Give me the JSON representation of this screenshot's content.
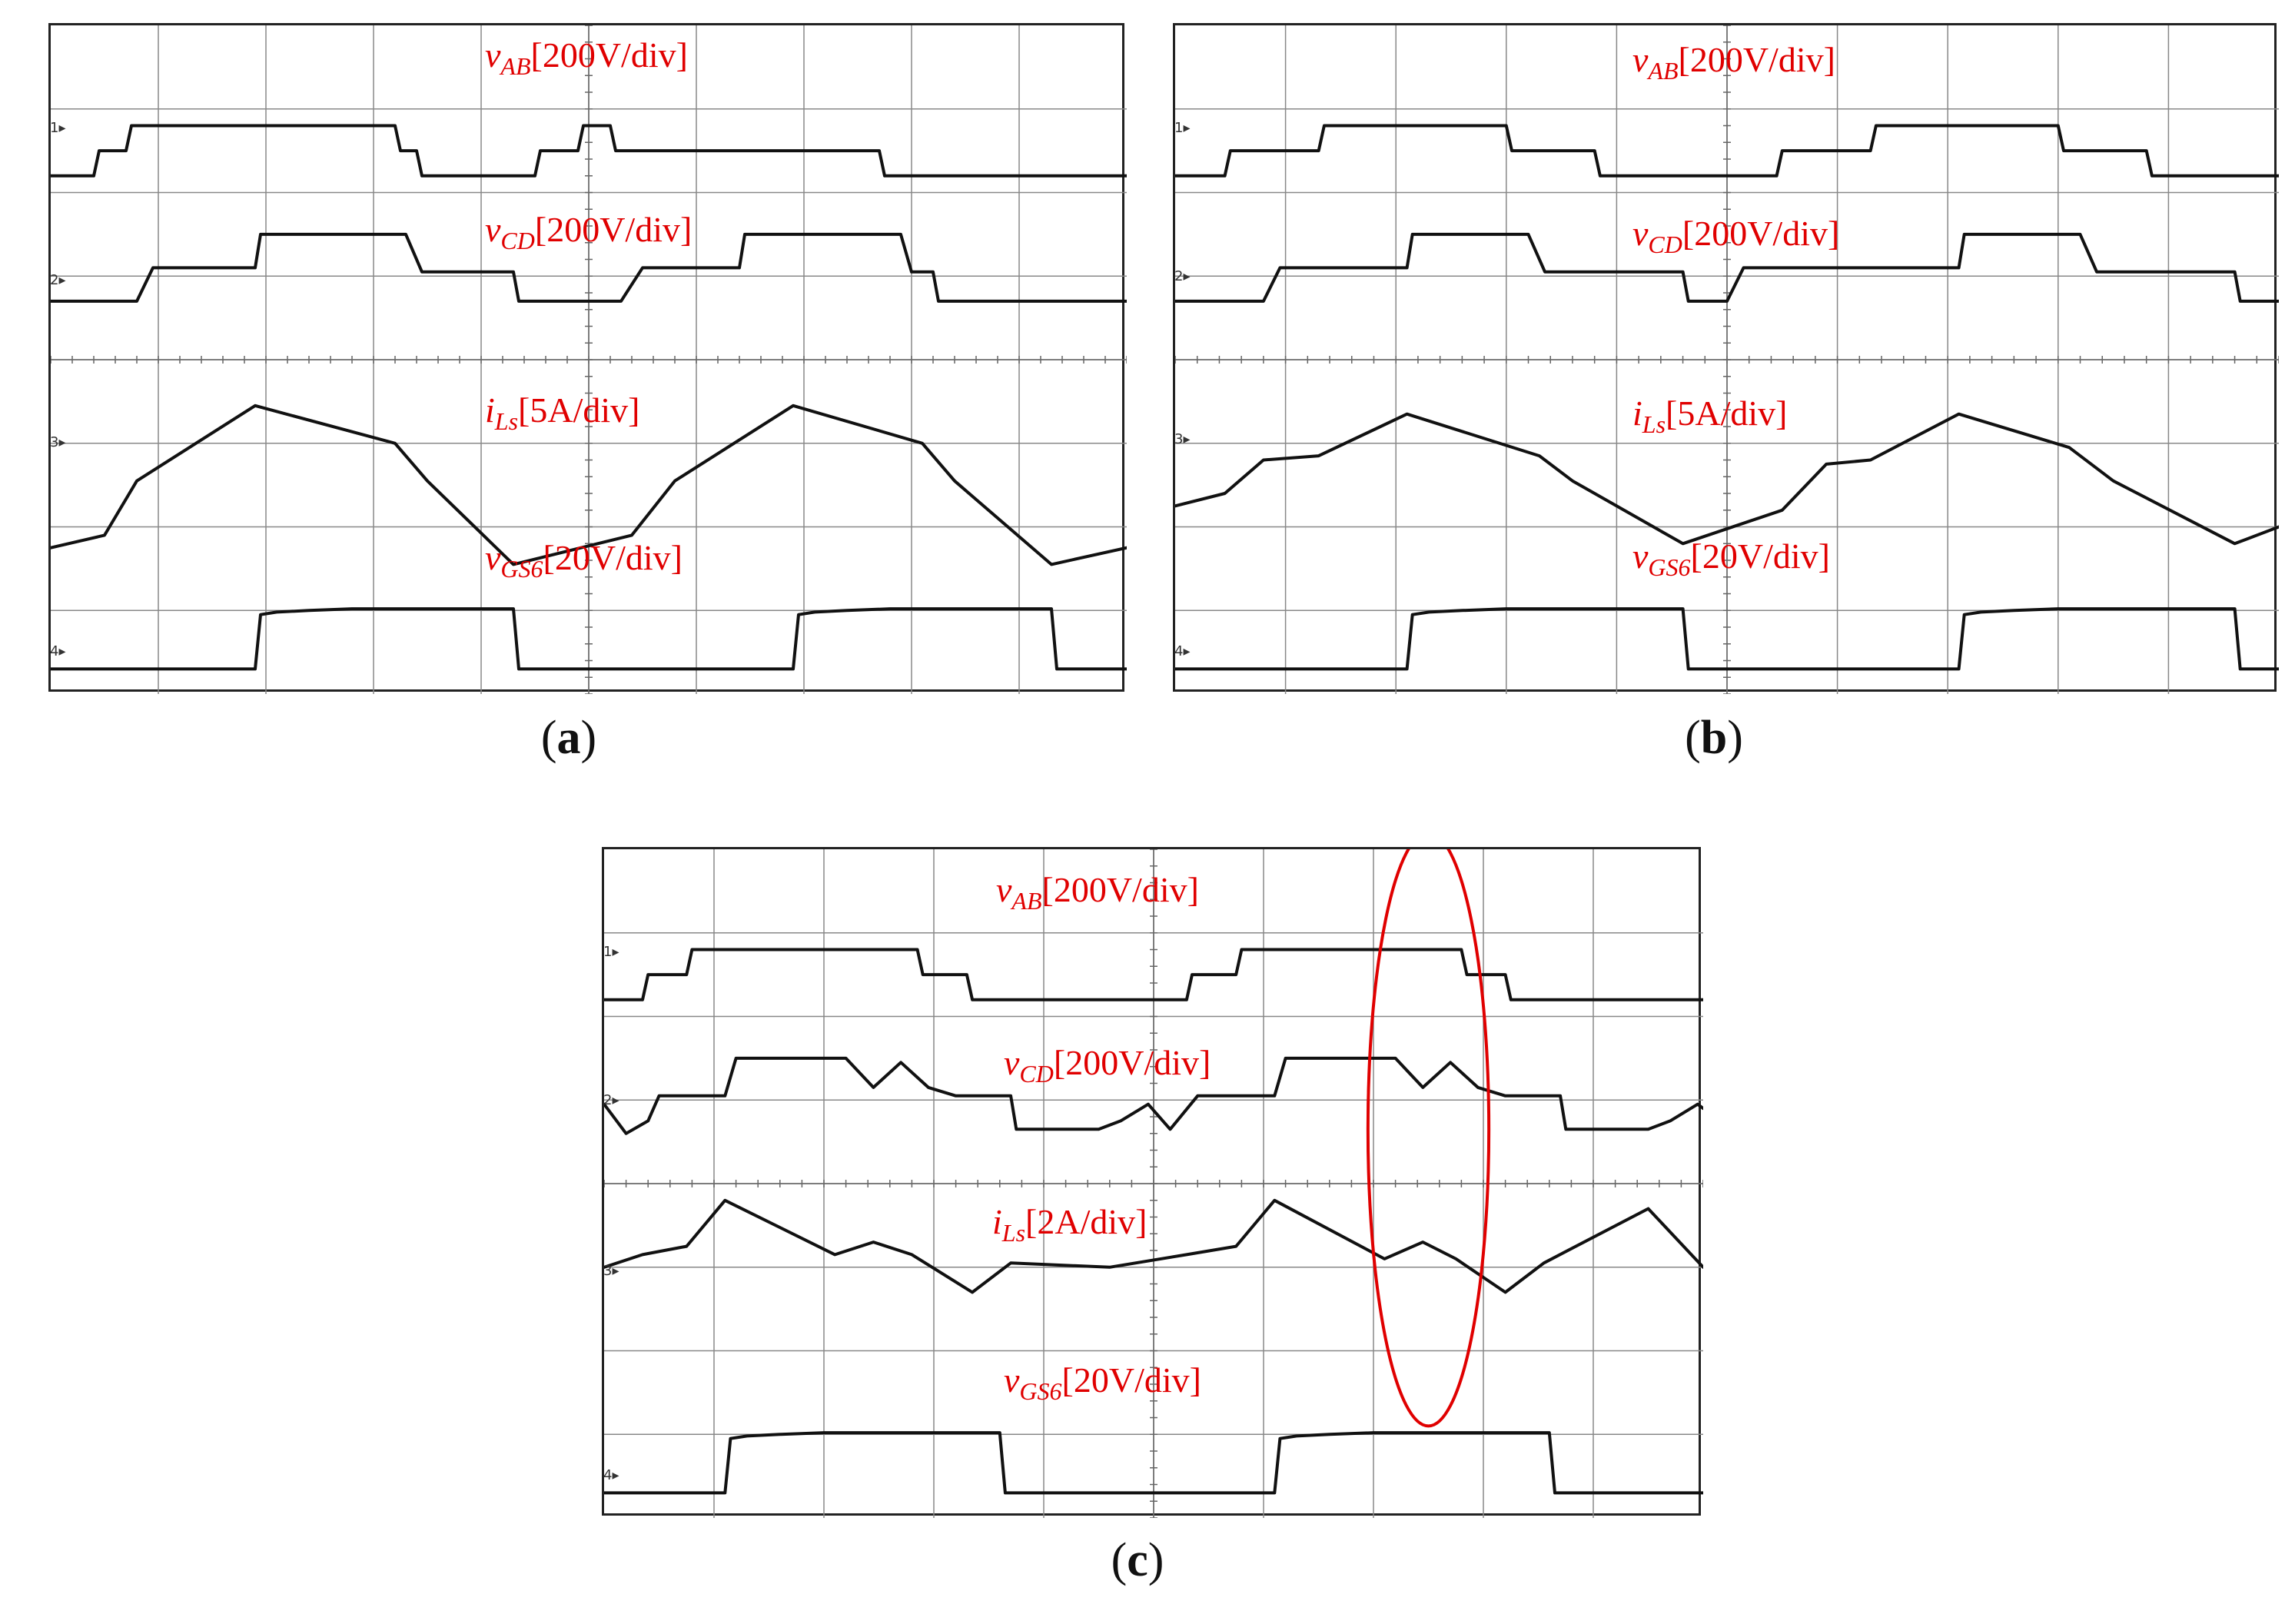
{
  "chart_data": [
    {
      "type": "line",
      "panel": "a",
      "caption_letter": "a",
      "title": "",
      "xlabel": "",
      "ylabel": "",
      "grid": true,
      "divisions": {
        "x": 10,
        "y": 8
      },
      "xlim": [
        0,
        10
      ],
      "ylim": [
        0,
        8
      ],
      "series": [
        {
          "name": "vAB",
          "sym": "v",
          "sub": "AB",
          "scale": "[200V/div]",
          "channel": "1",
          "x": [
            0,
            0.4,
            0.45,
            0.7,
            0.75,
            3.2,
            3.25,
            3.4,
            3.45,
            4.5,
            4.55,
            4.9,
            4.95,
            5.2,
            5.25,
            7.7,
            7.75,
            7.9,
            7.95,
            10
          ],
          "y": [
            6.2,
            6.2,
            6.5,
            6.5,
            6.8,
            6.8,
            6.5,
            6.5,
            6.2,
            6.2,
            6.5,
            6.5,
            6.8,
            6.8,
            6.5,
            6.5,
            6.2,
            6.2,
            6.2,
            6.2
          ]
        },
        {
          "name": "vCD",
          "sym": "v",
          "sub": "CD",
          "scale": "[200V/div]",
          "channel": "2",
          "x": [
            0,
            0.8,
            0.95,
            1.9,
            1.95,
            3.3,
            3.45,
            4.3,
            4.35,
            5.3,
            5.5,
            6.4,
            6.45,
            7.9,
            8.0,
            8.2,
            8.25,
            10
          ],
          "y": [
            4.7,
            4.7,
            5.1,
            5.1,
            5.5,
            5.5,
            5.05,
            5.05,
            4.7,
            4.7,
            5.1,
            5.1,
            5.5,
            5.5,
            5.05,
            5.05,
            4.7,
            4.7
          ]
        },
        {
          "name": "iLs",
          "sym": "i",
          "sub": "Ls",
          "scale": "[5A/div]",
          "channel": "3",
          "x": [
            0,
            0.5,
            0.8,
            1.9,
            3.2,
            3.5,
            4.3,
            5.4,
            5.8,
            6.9,
            8.1,
            8.4,
            9.3,
            10
          ],
          "y": [
            1.75,
            1.9,
            2.55,
            3.45,
            3.0,
            2.55,
            1.55,
            1.9,
            2.55,
            3.45,
            3.0,
            2.55,
            1.55,
            1.75
          ]
        },
        {
          "name": "vGS6",
          "sym": "v",
          "sub": "GS6",
          "scale": "[20V/div]",
          "channel": "4",
          "x": [
            0,
            1.9,
            1.95,
            2.1,
            2.4,
            2.8,
            4.3,
            4.35,
            6.9,
            6.95,
            7.1,
            7.4,
            7.8,
            9.3,
            9.35,
            10
          ],
          "y": [
            0.3,
            0.3,
            0.95,
            0.98,
            1.0,
            1.02,
            1.02,
            0.3,
            0.3,
            0.95,
            0.98,
            1.0,
            1.02,
            1.02,
            0.3,
            0.3
          ]
        }
      ]
    },
    {
      "type": "line",
      "panel": "b",
      "caption_letter": "b",
      "title": "",
      "xlabel": "",
      "ylabel": "",
      "grid": true,
      "divisions": {
        "x": 10,
        "y": 8
      },
      "xlim": [
        0,
        10
      ],
      "ylim": [
        0,
        8
      ],
      "series": [
        {
          "name": "vAB",
          "sym": "v",
          "sub": "AB",
          "scale": "[200V/div]",
          "channel": "1",
          "x": [
            0,
            0.45,
            0.5,
            1.3,
            1.35,
            3.0,
            3.05,
            3.8,
            3.85,
            5.45,
            5.5,
            6.3,
            6.35,
            8.0,
            8.05,
            8.8,
            8.85,
            10
          ],
          "y": [
            6.2,
            6.2,
            6.5,
            6.5,
            6.8,
            6.8,
            6.5,
            6.5,
            6.2,
            6.2,
            6.5,
            6.5,
            6.8,
            6.8,
            6.5,
            6.5,
            6.2,
            6.2
          ]
        },
        {
          "name": "vCD",
          "sym": "v",
          "sub": "CD",
          "scale": "[200V/div]",
          "channel": "2",
          "x": [
            0,
            0.8,
            0.95,
            2.1,
            2.15,
            3.2,
            3.35,
            4.6,
            4.65,
            5.0,
            5.15,
            7.1,
            7.15,
            8.2,
            8.35,
            9.6,
            9.65,
            10
          ],
          "y": [
            4.7,
            4.7,
            5.1,
            5.1,
            5.5,
            5.5,
            5.05,
            5.05,
            4.7,
            4.7,
            5.1,
            5.1,
            5.5,
            5.5,
            5.05,
            5.05,
            4.7,
            4.7
          ]
        },
        {
          "name": "iLs",
          "sym": "i",
          "sub": "Ls",
          "scale": "[5A/div]",
          "channel": "3",
          "x": [
            0,
            0.45,
            0.8,
            1.3,
            2.1,
            3.3,
            3.6,
            4.6,
            5.5,
            5.9,
            6.3,
            7.1,
            8.1,
            8.5,
            9.6,
            10
          ],
          "y": [
            2.25,
            2.4,
            2.8,
            2.85,
            3.35,
            2.85,
            2.55,
            1.8,
            2.2,
            2.75,
            2.8,
            3.35,
            2.95,
            2.55,
            1.8,
            2.0
          ]
        },
        {
          "name": "vGS6",
          "sym": "v",
          "sub": "GS6",
          "scale": "[20V/div]",
          "channel": "4",
          "x": [
            0,
            2.1,
            2.15,
            2.3,
            2.6,
            3.0,
            4.6,
            4.65,
            7.1,
            7.15,
            7.3,
            7.6,
            8.0,
            9.6,
            9.65,
            10
          ],
          "y": [
            0.3,
            0.3,
            0.95,
            0.98,
            1.0,
            1.02,
            1.02,
            0.3,
            0.3,
            0.95,
            0.98,
            1.0,
            1.02,
            1.02,
            0.3,
            0.3
          ]
        }
      ]
    },
    {
      "type": "line",
      "panel": "c",
      "caption_letter": "c",
      "title": "",
      "xlabel": "",
      "ylabel": "",
      "grid": true,
      "divisions": {
        "x": 10,
        "y": 8
      },
      "xlim": [
        0,
        10
      ],
      "ylim": [
        0,
        8
      ],
      "annotation": {
        "shape": "ellipse",
        "color": "#e00000",
        "center_x": 7.5,
        "center_y": 4.65,
        "radius_x": 0.55,
        "radius_y": 3.55
      },
      "series": [
        {
          "name": "vAB",
          "sym": "v",
          "sub": "AB",
          "scale": "[200V/div]",
          "channel": "1",
          "x": [
            0,
            0.35,
            0.4,
            0.75,
            0.8,
            2.85,
            2.9,
            3.3,
            3.35,
            5.3,
            5.35,
            5.75,
            5.8,
            7.8,
            7.85,
            8.2,
            8.25,
            10
          ],
          "y": [
            6.2,
            6.2,
            6.5,
            6.5,
            6.8,
            6.8,
            6.5,
            6.5,
            6.2,
            6.2,
            6.5,
            6.5,
            6.8,
            6.8,
            6.5,
            6.5,
            6.2,
            6.2
          ]
        },
        {
          "name": "vCD",
          "sym": "v",
          "sub": "CD",
          "scale": "[200V/div]",
          "channel": "2",
          "x": [
            0,
            0.2,
            0.4,
            0.5,
            1.1,
            1.2,
            1.3,
            2.0,
            2.2,
            2.45,
            2.7,
            2.95,
            3.2,
            3.7,
            3.75,
            4.5,
            4.7,
            4.95,
            5.15,
            5.4,
            6.1,
            6.2,
            6.3,
            7.0,
            7.2,
            7.45,
            7.7,
            7.95,
            8.2,
            8.7,
            8.75,
            9.5,
            9.7,
            9.95,
            10
          ],
          "y": [
            4.95,
            4.6,
            4.75,
            5.05,
            5.05,
            5.5,
            5.5,
            5.5,
            5.5,
            5.15,
            5.45,
            5.15,
            5.05,
            5.05,
            4.65,
            4.65,
            4.75,
            4.95,
            4.65,
            5.05,
            5.05,
            5.5,
            5.5,
            5.5,
            5.5,
            5.15,
            5.45,
            5.15,
            5.05,
            5.05,
            4.65,
            4.65,
            4.75,
            4.95,
            4.9
          ]
        },
        {
          "name": "iLs",
          "sym": "i",
          "sub": "Ls",
          "scale": "[2A/div]",
          "channel": "3",
          "x": [
            0,
            0.35,
            0.75,
            1.1,
            2.1,
            2.45,
            2.8,
            3.35,
            3.7,
            4.6,
            5.3,
            5.75,
            6.1,
            7.1,
            7.45,
            7.75,
            8.2,
            8.55,
            9.5,
            10
          ],
          "y": [
            3.0,
            3.15,
            3.25,
            3.8,
            3.15,
            3.3,
            3.15,
            2.7,
            3.05,
            3.0,
            3.15,
            3.25,
            3.8,
            3.1,
            3.3,
            3.1,
            2.7,
            3.05,
            3.7,
            3.0
          ]
        },
        {
          "name": "vGS6",
          "sym": "v",
          "sub": "GS6",
          "scale": "[20V/div]",
          "channel": "4",
          "x": [
            0,
            1.1,
            1.15,
            1.3,
            1.6,
            2.0,
            3.6,
            3.65,
            6.1,
            6.15,
            6.3,
            6.6,
            7.0,
            8.6,
            8.65,
            10
          ],
          "y": [
            0.3,
            0.3,
            0.95,
            0.98,
            1.0,
            1.02,
            1.02,
            0.3,
            0.3,
            0.95,
            0.98,
            1.0,
            1.02,
            1.02,
            0.3,
            0.3
          ]
        }
      ]
    }
  ]
}
